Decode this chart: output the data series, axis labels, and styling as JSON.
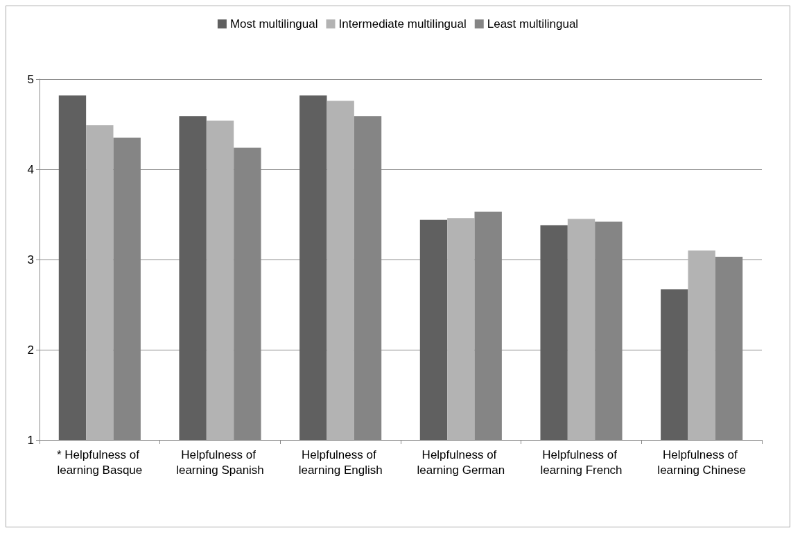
{
  "chart_data": {
    "type": "bar",
    "categories": [
      "* Helpfulness of learning Basque",
      "Helpfulness of learning Spanish",
      "Helpfulness of learning English",
      "Helpfulness of learning German",
      "Helpfulness of learning French",
      "Helpfulness of learning Chinese"
    ],
    "series": [
      {
        "name": "Most multilingual",
        "color": "#606060",
        "values": [
          4.82,
          4.59,
          4.82,
          3.44,
          3.38,
          2.67
        ]
      },
      {
        "name": "Intermediate multilingual",
        "color": "#b3b3b3",
        "values": [
          4.49,
          4.54,
          4.76,
          3.46,
          3.45,
          3.1
        ]
      },
      {
        "name": "Least multilingual",
        "color": "#858585",
        "values": [
          4.35,
          4.24,
          4.59,
          3.53,
          3.42,
          3.03
        ]
      }
    ],
    "ylim": [
      1,
      5
    ],
    "yticks": [
      1,
      2,
      3,
      4,
      5
    ],
    "grid": "y",
    "legend": "top"
  }
}
